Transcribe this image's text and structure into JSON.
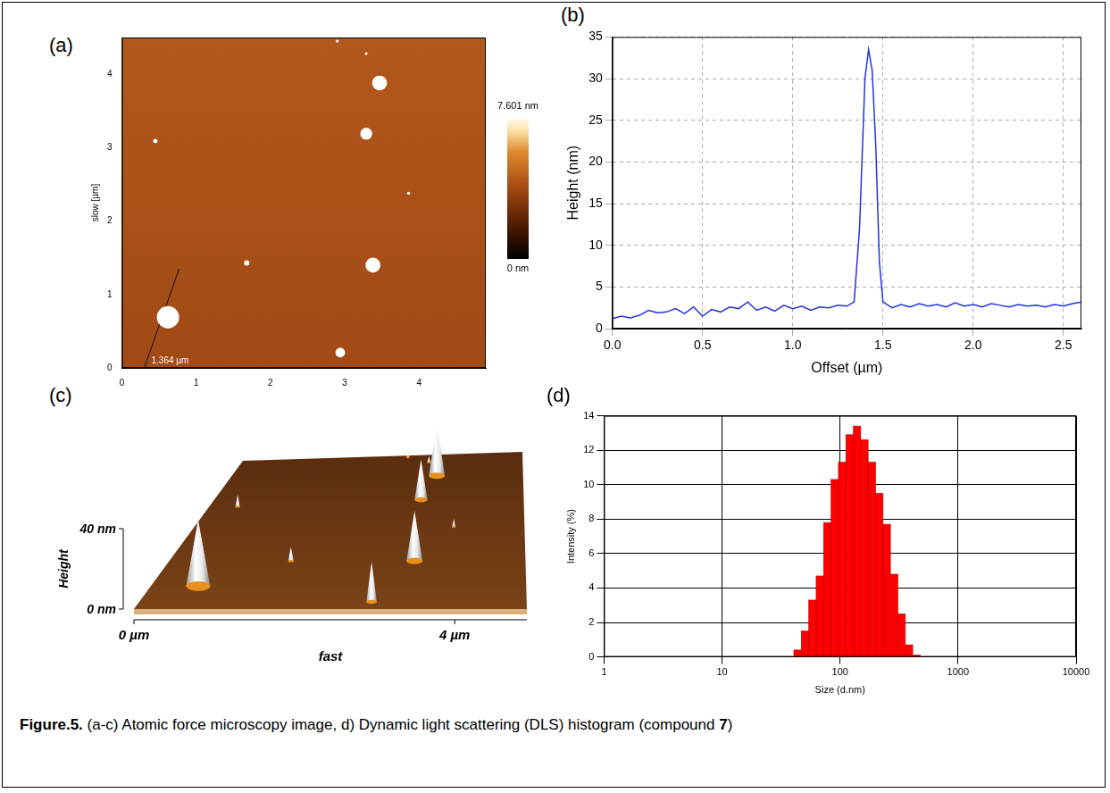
{
  "chart_data": [
    {
      "panel": "(a)",
      "type": "scatter",
      "y_label": "slow [µm]",
      "xlim": [
        0,
        4.9
      ],
      "ylim": [
        0,
        4.5
      ],
      "xticks": [
        0,
        1,
        2,
        3,
        4
      ],
      "yticks": [
        0,
        1,
        2,
        3,
        4
      ],
      "grid": false,
      "x": [
        2.9,
        3.47,
        0.45,
        3.29,
        3.29,
        3.86,
        1.68,
        3.38,
        0.62,
        2.94
      ],
      "y": [
        4.45,
        3.88,
        3.09,
        3.19,
        4.28,
        2.38,
        1.43,
        1.4,
        0.69,
        0.21
      ],
      "diameter": [
        0.04,
        0.2,
        0.06,
        0.16,
        0.03,
        0.04,
        0.07,
        0.2,
        0.3,
        0.13
      ],
      "color": "#ffffff",
      "profile_line": {
        "x": [
          0.3,
          0.77
        ],
        "y": [
          0,
          1.35
        ],
        "label": "1.364 µm"
      },
      "colorbar": {
        "range": [
          0,
          7.601
        ],
        "ticks": [
          {
            "value": 7.601,
            "label": "7.601 nm"
          },
          {
            "value": 0,
            "label": "0 nm"
          }
        ]
      }
    },
    {
      "panel": "(b)",
      "type": "line",
      "x_label": "Offset (µm)",
      "y_label": "Height (nm)",
      "xlim": [
        0,
        2.6
      ],
      "ylim": [
        0,
        35
      ],
      "xticks": [
        {
          "value": 0,
          "label": "0.0"
        },
        0.5,
        {
          "value": 1,
          "label": "1.0"
        },
        1.5,
        {
          "value": 2,
          "label": "2.0"
        },
        2.5
      ],
      "yticks": [
        0,
        5,
        10,
        15,
        20,
        25,
        30,
        35
      ],
      "grid": true,
      "color": "#2233dd",
      "x": [
        0,
        0.05,
        0.1,
        0.15,
        0.2,
        0.25,
        0.3,
        0.35,
        0.4,
        0.45,
        0.5,
        0.55,
        0.6,
        0.65,
        0.7,
        0.75,
        0.8,
        0.85,
        0.9,
        0.95,
        1,
        1.05,
        1.1,
        1.15,
        1.2,
        1.25,
        1.3,
        1.34,
        1.37,
        1.4,
        1.42,
        1.44,
        1.46,
        1.48,
        1.5,
        1.55,
        1.6,
        1.65,
        1.7,
        1.75,
        1.8,
        1.85,
        1.9,
        1.95,
        2,
        2.05,
        2.1,
        2.15,
        2.2,
        2.25,
        2.3,
        2.35,
        2.4,
        2.45,
        2.5,
        2.55,
        2.6
      ],
      "values": [
        1.2,
        1.5,
        1.3,
        1.6,
        2.2,
        1.9,
        2.0,
        2.4,
        1.8,
        2.6,
        1.5,
        2.3,
        2.0,
        2.6,
        2.4,
        3.2,
        2.2,
        2.6,
        2.1,
        2.8,
        2.4,
        2.7,
        2.2,
        2.6,
        2.5,
        2.8,
        2.7,
        3.2,
        12,
        30,
        33.5,
        31,
        22,
        8,
        3.2,
        2.5,
        2.9,
        2.6,
        3.0,
        2.7,
        2.9,
        2.6,
        3.1,
        2.7,
        2.9,
        2.6,
        3.0,
        2.8,
        2.6,
        2.9,
        2.7,
        2.8,
        2.6,
        2.9,
        2.7,
        3.0,
        3.2
      ]
    },
    {
      "panel": "(c)",
      "type": "surface3d",
      "x_label": "fast",
      "z_label": "Height",
      "xlim": [
        0,
        4.9
      ],
      "ylim": [
        0,
        4.5
      ],
      "zlim": [
        0,
        40
      ],
      "xticks": [
        {
          "value": 0,
          "label": "0 µm"
        },
        {
          "value": 4,
          "label": "4 µm"
        }
      ],
      "zticks": [
        {
          "value": 40,
          "label": "40 nm"
        },
        {
          "value": 0,
          "label": "0 nm"
        }
      ],
      "x": [
        2.9,
        3.47,
        0.45,
        3.29,
        3.29,
        3.86,
        1.68,
        3.38,
        0.62,
        2.94
      ],
      "y": [
        4.45,
        3.88,
        3.09,
        3.19,
        4.28,
        2.38,
        1.43,
        1.4,
        0.69,
        0.21
      ],
      "diameter": [
        0.04,
        0.2,
        0.06,
        0.16,
        0.03,
        0.04,
        0.07,
        0.2,
        0.3,
        0.13
      ],
      "height": [
        3,
        26,
        6,
        20,
        3,
        4,
        7,
        25,
        33,
        20
      ]
    },
    {
      "panel": "(d)",
      "type": "histogram",
      "x_label": "Size (d.nm)",
      "y_label": "Intensity (%)",
      "log": "x",
      "xlim": [
        1,
        10000
      ],
      "xticks": [
        1,
        10,
        100,
        1000,
        10000
      ],
      "ylim": [
        0,
        14
      ],
      "yticks": [
        0,
        2,
        4,
        6,
        8,
        10,
        12,
        14
      ],
      "grid": true,
      "color": "#ff0000",
      "bins": [
        40.6,
        46.9,
        54.3,
        62.7,
        72.5,
        83.8,
        96.9,
        112.0,
        129.5,
        149.7,
        173.0,
        200.0,
        231.2,
        267.3,
        309.0,
        357.2,
        412.9,
        477.3
      ],
      "counts": [
        0.4,
        1.5,
        3.3,
        4.7,
        7.8,
        10.3,
        11.3,
        12.9,
        13.4,
        12.6,
        11.3,
        9.5,
        7.7,
        4.8,
        2.5,
        0.7,
        0.1
      ]
    }
  ],
  "caption": {
    "label": "Figure.5.",
    "text": "(a-c) Atomic force microscopy image, d) Dynamic light scattering (DLS) histogram (compound",
    "compound": "7",
    "close": ")"
  }
}
